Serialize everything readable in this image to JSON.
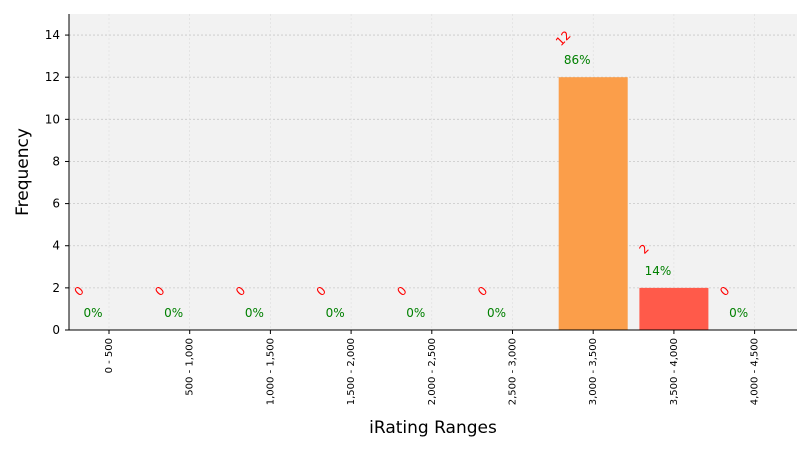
{
  "chart_data": {
    "type": "bar",
    "title": "",
    "xlabel": "iRating Ranges",
    "ylabel": "Frequency",
    "categories": [
      "0 - 500",
      "500 - 1,000",
      "1,000 - 1,500",
      "1,500 - 2,000",
      "2,000 - 2,500",
      "2,500 - 3,000",
      "3,000 - 3,500",
      "3,500 - 4,000",
      "4,000 - 4,500"
    ],
    "values": [
      0,
      0,
      0,
      0,
      0,
      0,
      12,
      2,
      0
    ],
    "count_labels": [
      "0",
      "0",
      "0",
      "0",
      "0",
      "0",
      "12",
      "2",
      "0"
    ],
    "percent_labels": [
      "0%",
      "0%",
      "0%",
      "0%",
      "0%",
      "0%",
      "86%",
      "14%",
      "0%"
    ],
    "bar_colors": [
      "#fb9e4a",
      "#fb9e4a",
      "#fb9e4a",
      "#fb9e4a",
      "#fb9e4a",
      "#fb9e4a",
      "#fb9e4a",
      "#ff5a4a",
      "#fb9e4a"
    ],
    "count_label_color": "#ff0000",
    "percent_label_color": "#008000",
    "plot_background": "#f2f2f2",
    "grid": true,
    "ylim": [
      0,
      15
    ],
    "yticks": [
      0,
      2,
      4,
      6,
      8,
      10,
      12,
      14
    ],
    "ytick_labels": [
      "0",
      "2",
      "4",
      "6",
      "8",
      "10",
      "12",
      "14"
    ]
  }
}
